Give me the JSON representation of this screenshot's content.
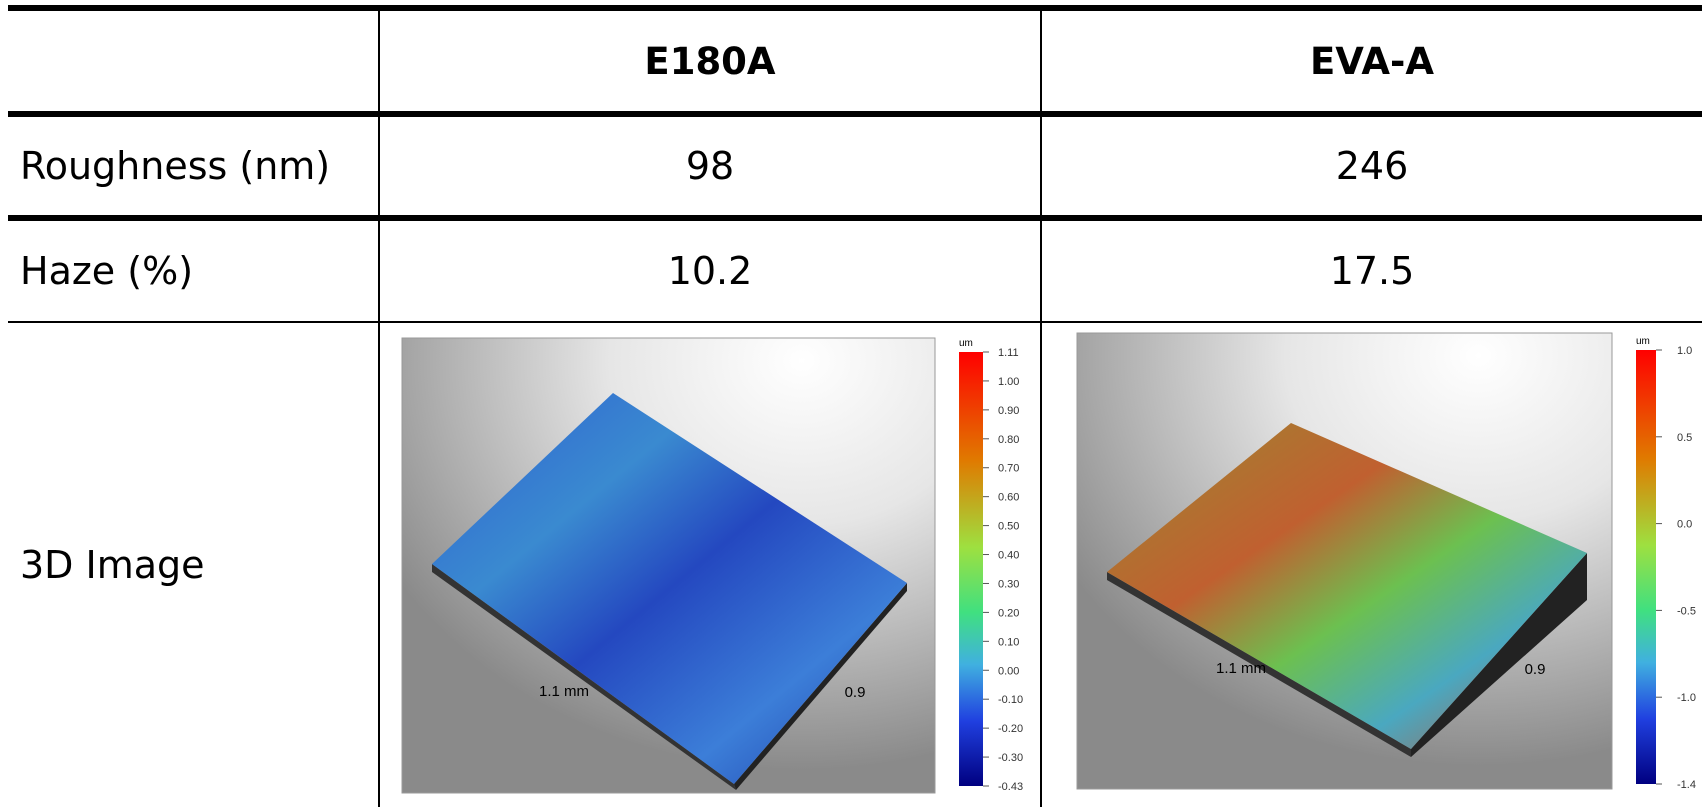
{
  "table": {
    "header": [
      "E180A",
      "EVA-A"
    ],
    "rows": [
      [
        "Roughness (nm)",
        "98",
        "246"
      ],
      [
        "Haze (%)",
        "10.2",
        "17.5"
      ],
      [
        "3D Image"
      ]
    ],
    "images": [
      {
        "unit": "um",
        "colorbar": [
          "1.11",
          "1.00",
          "0.90",
          "0.80",
          "0.70",
          "0.60",
          "0.50",
          "0.40",
          "0.30",
          "0.20",
          "0.10",
          "0.00",
          "-0.10",
          "-0.20",
          "-0.30",
          "-0.43"
        ],
        "x_label": "1.1 mm",
        "y_label": "0.9"
      },
      {
        "unit": "um",
        "colorbar": [
          "1.0",
          "0.5",
          "0.0",
          "-0.5",
          "-1.0",
          "-1.4"
        ],
        "x_label": "1.1 mm",
        "y_label": "0.9"
      }
    ]
  }
}
